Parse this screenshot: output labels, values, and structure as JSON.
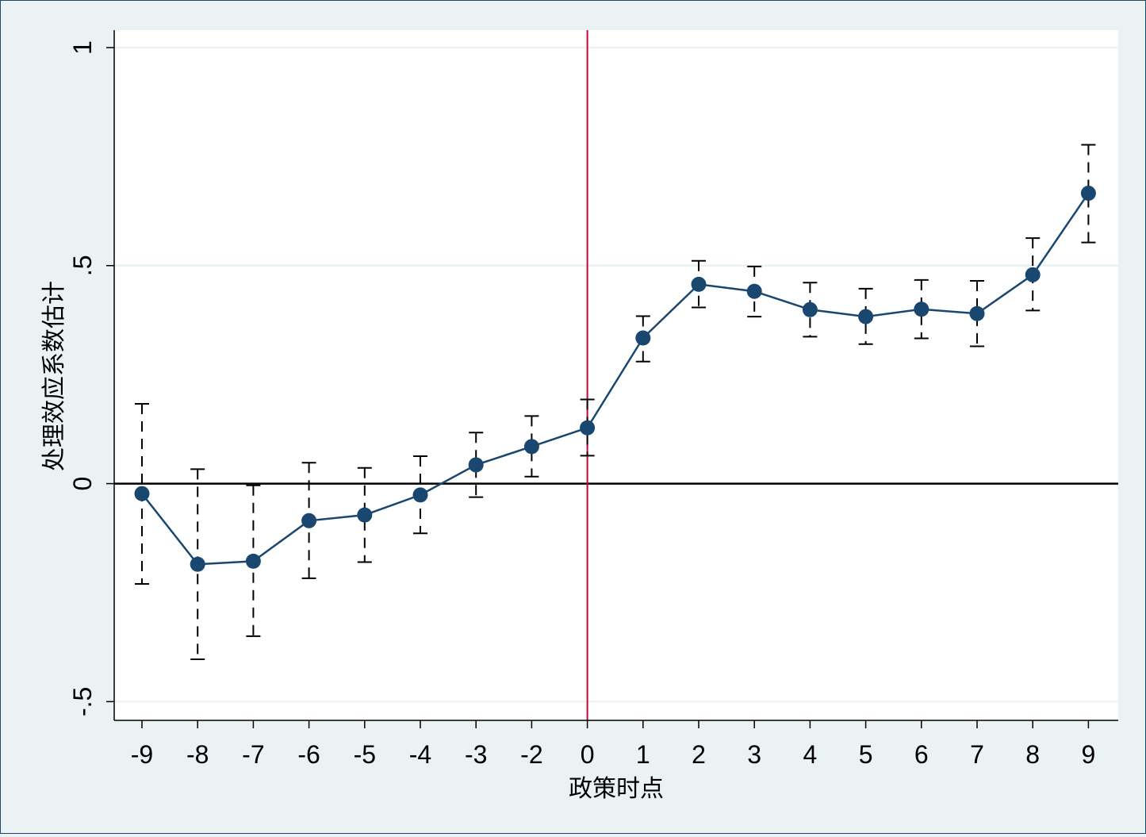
{
  "chart_data": {
    "type": "line",
    "title": "",
    "xlabel": "政策时点",
    "ylabel": "处理效应系数估计",
    "categories": [
      "-9",
      "-8",
      "-7",
      "-6",
      "-5",
      "-4",
      "-3",
      "-2",
      "0",
      "1",
      "2",
      "3",
      "4",
      "5",
      "6",
      "7",
      "8",
      "9"
    ],
    "yticks": [
      {
        "value": 1,
        "label": "1"
      },
      {
        "value": 0.5,
        "label": ".5"
      },
      {
        "value": 0,
        "label": "0"
      },
      {
        "value": -0.5,
        "label": "-.5"
      }
    ],
    "ylim": [
      -0.543,
      1.04
    ],
    "grid": true,
    "reference_lines": {
      "horizontal_zero": true,
      "vertical_at_category": "0"
    },
    "series": [
      {
        "values": [
          -0.023,
          -0.185,
          -0.178,
          -0.085,
          -0.072,
          -0.026,
          0.043,
          0.085,
          0.128,
          0.334,
          0.457,
          0.441,
          0.399,
          0.383,
          0.4,
          0.39,
          0.479,
          0.666
        ],
        "ci_low": [
          -0.23,
          -0.403,
          -0.35,
          -0.217,
          -0.18,
          -0.114,
          -0.031,
          0.016,
          0.064,
          0.28,
          0.404,
          0.383,
          0.337,
          0.32,
          0.333,
          0.315,
          0.397,
          0.553
        ],
        "ci_high": [
          0.183,
          0.033,
          -0.004,
          0.048,
          0.036,
          0.063,
          0.117,
          0.155,
          0.193,
          0.384,
          0.511,
          0.498,
          0.461,
          0.447,
          0.467,
          0.465,
          0.563,
          0.777
        ]
      }
    ],
    "colors": {
      "series": "#1a476f",
      "vertical_line": "#c10534",
      "zero_line": "#000000",
      "grid": "#eaf2f3",
      "plot_bg": "#ffffff",
      "outer_bg": "#eaf2f3"
    }
  }
}
